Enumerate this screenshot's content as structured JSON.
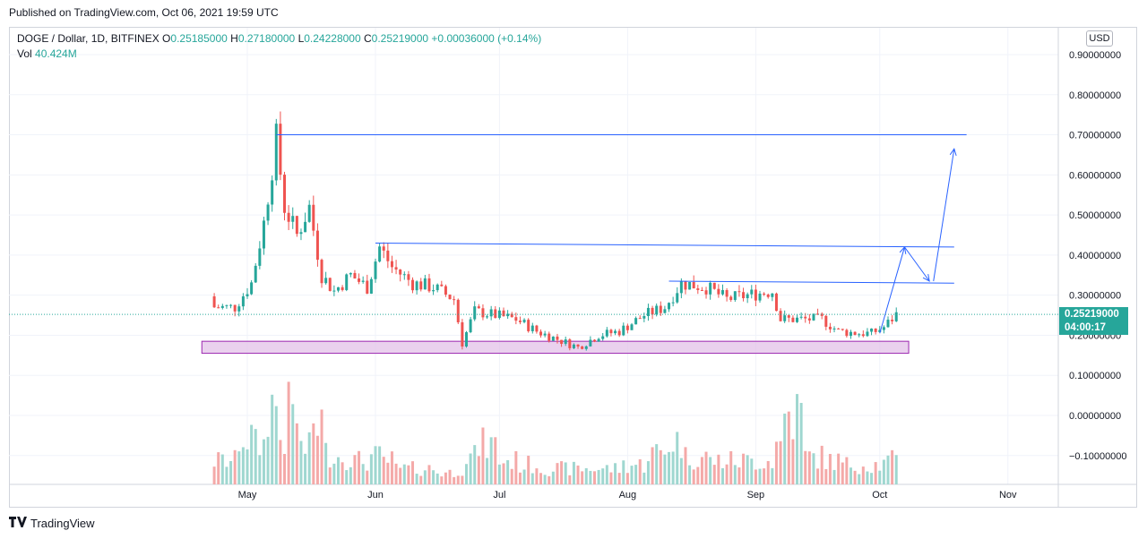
{
  "header": {
    "published": "Published on TradingView.com, Oct 06, 2021 19:59 UTC"
  },
  "legend": {
    "symbol": "DOGE / Dollar, 1D, BITFINEX",
    "o_label": "O",
    "o": "0.25185000",
    "h_label": "H",
    "h": "0.27180000",
    "l_label": "L",
    "l": "0.24228000",
    "c_label": "C",
    "c": "0.25219000",
    "change": "+0.00036000 (+0.14%)",
    "vol_label": "Vol",
    "vol": "40.424M"
  },
  "currency_button": "USD",
  "last_price": {
    "value": "0.25219000",
    "countdown": "04:00:17"
  },
  "footer": {
    "brand": "TradingView"
  },
  "colors": {
    "up": "#26a69a",
    "down": "#ef5350",
    "vol_up": "#9fd7d0",
    "vol_down": "#f4a9a8",
    "trendline": "#2962ff",
    "support_zone": "#e1bee7",
    "support_border": "#9c27b0",
    "grid": "#f0f3fa"
  },
  "chart_data": {
    "type": "candlestick",
    "y_axis_ticks": [
      "0.90000000",
      "0.80000000",
      "0.70000000",
      "0.60000000",
      "0.50000000",
      "0.40000000",
      "0.30000000",
      "0.20000000",
      "0.10000000",
      "0.00000000",
      "−0.10000000"
    ],
    "x_axis_ticks": [
      "May",
      "Jun",
      "Jul",
      "Aug",
      "Sep",
      "Oct",
      "Nov"
    ],
    "ylim": [
      -0.17,
      0.95
    ],
    "last_close": 0.25219,
    "trend_lines": [
      {
        "from": [
          "2021-05-08",
          0.7
        ],
        "to": [
          "2021-10-22",
          0.7
        ]
      },
      {
        "from": [
          "2021-06-01",
          0.43
        ],
        "to": [
          "2021-10-19",
          0.42
        ]
      },
      {
        "from": [
          "2021-08-11",
          0.335
        ],
        "to": [
          "2021-10-19",
          0.33
        ]
      }
    ],
    "support_zone": {
      "from": "2021-04-20",
      "to": "2021-10-08",
      "top": 0.185,
      "bottom": 0.155
    },
    "arrows": [
      {
        "from": [
          "2021-10-01",
          0.205
        ],
        "to": [
          "2021-10-07",
          0.42
        ]
      },
      {
        "from": [
          "2021-10-07",
          0.42
        ],
        "to": [
          "2021-10-13",
          0.335
        ]
      },
      {
        "from": [
          "2021-10-14",
          0.335
        ],
        "to": [
          "2021-10-19",
          0.665
        ]
      }
    ],
    "series": [
      {
        "name": "DOGE / Dollar",
        "dates": [
          "2021-04-23",
          "2021-04-28",
          "2021-05-02",
          "2021-05-05",
          "2021-05-08",
          "2021-05-10",
          "2021-05-13",
          "2021-05-16",
          "2021-05-19",
          "2021-05-22",
          "2021-05-26",
          "2021-05-30",
          "2021-06-02",
          "2021-06-05",
          "2021-06-10",
          "2021-06-15",
          "2021-06-20",
          "2021-06-22",
          "2021-06-25",
          "2021-06-30",
          "2021-07-05",
          "2021-07-10",
          "2021-07-15",
          "2021-07-20",
          "2021-07-25",
          "2021-07-30",
          "2021-08-05",
          "2021-08-10",
          "2021-08-14",
          "2021-08-20",
          "2021-08-25",
          "2021-08-30",
          "2021-09-05",
          "2021-09-07",
          "2021-09-12",
          "2021-09-17",
          "2021-09-21",
          "2021-09-26",
          "2021-09-29",
          "2021-10-02",
          "2021-10-05"
        ],
        "close": [
          0.27,
          0.27,
          0.33,
          0.48,
          0.69,
          0.52,
          0.45,
          0.52,
          0.35,
          0.31,
          0.35,
          0.32,
          0.42,
          0.37,
          0.33,
          0.32,
          0.29,
          0.18,
          0.26,
          0.25,
          0.24,
          0.21,
          0.19,
          0.17,
          0.2,
          0.21,
          0.25,
          0.27,
          0.33,
          0.32,
          0.29,
          0.3,
          0.31,
          0.24,
          0.24,
          0.24,
          0.21,
          0.205,
          0.205,
          0.22,
          0.252
        ]
      }
    ],
    "volume_relative": [
      0.3,
      0.6,
      0.5,
      1.0,
      0.6,
      0.9,
      0.45,
      0.8,
      0.4,
      0.35,
      0.3,
      0.35,
      0.3,
      0.2,
      0.2,
      0.15,
      0.2,
      0.35,
      0.5,
      0.3,
      0.25,
      0.2,
      0.2,
      0.2,
      0.2,
      0.25,
      0.4,
      0.55,
      0.35,
      0.3,
      0.3,
      0.3,
      0.5,
      0.9,
      0.35,
      0.3,
      0.25,
      0.25,
      0.25,
      0.3,
      0.35
    ]
  }
}
